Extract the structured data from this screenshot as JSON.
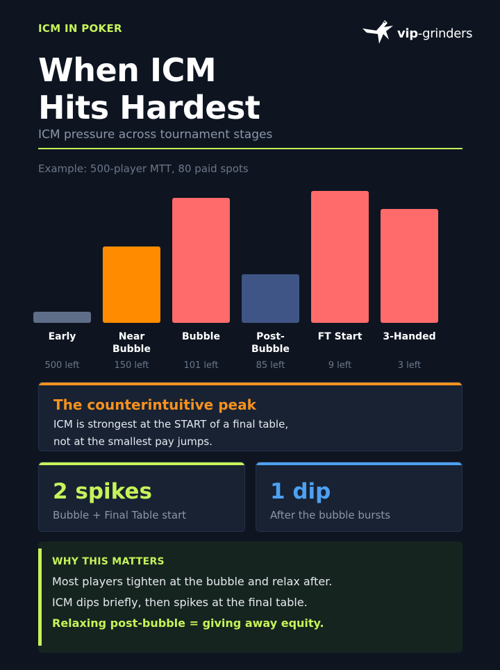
{
  "header": {
    "eyebrow": "ICM IN POKER",
    "title_line1": "When ICM",
    "title_line2": "Hits Hardest",
    "subtitle": "ICM pressure across tournament stages",
    "example": "Example: 500-player MTT, 80 paid spots"
  },
  "logo": {
    "icon": "bird-icon",
    "text_a": "vip",
    "text_b": "-grinders"
  },
  "chart_data": {
    "type": "bar",
    "categories": [
      [
        "Early"
      ],
      [
        "Near",
        "Bubble"
      ],
      [
        "Bubble"
      ],
      [
        "Post-",
        "Bubble"
      ],
      [
        "FT Start"
      ],
      [
        "3-Handed"
      ]
    ],
    "sublabels": [
      "500 left",
      "150 left",
      "101 left",
      "85 left",
      "9 left",
      "3 left"
    ],
    "values": [
      8,
      55,
      90,
      35,
      95,
      82
    ],
    "colors": [
      "#5f6e88",
      "#ff8c00",
      "#ff6b6b",
      "#3e5585",
      "#ff6b6b",
      "#ff6b6b"
    ],
    "ylim": [
      0,
      100
    ],
    "grid": false
  },
  "peak_card": {
    "heading": "The counterintuitive peak",
    "line1": "ICM is strongest at the START of a final table,",
    "line2": "not at the smallest pay jumps.",
    "accent": "#f7921e"
  },
  "stats": [
    {
      "big": "2 spikes",
      "small": "Bubble + Final Table start",
      "color": "#c6f35a"
    },
    {
      "big": "1 dip",
      "small": "After the bubble bursts",
      "color": "#4ea1f3"
    }
  ],
  "why": {
    "heading": "WHY THIS MATTERS",
    "line1": "Most players tighten at the bubble and relax after.",
    "line2": "ICM dips briefly, then spikes at the final table.",
    "line3": "Relaxing post-bubble = giving away equity."
  }
}
